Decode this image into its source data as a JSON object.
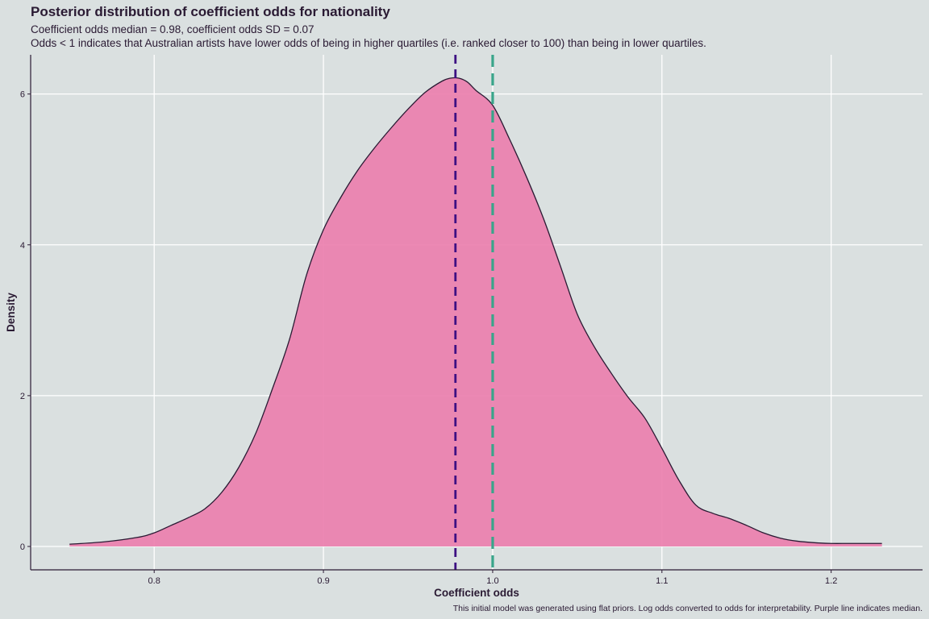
{
  "chart_data": {
    "type": "area",
    "title": "Posterior distribution of coefficient odds for nationality",
    "subtitle_line1": "Coefficient odds median = 0.98, coefficient odds SD = 0.07",
    "subtitle_line2": "Odds < 1 indicates that Australian artists have lower odds of being in higher quartiles (i.e. ranked closer to 100) than being in lower quartiles.",
    "caption": "This initial model was generated using flat priors. Log odds converted to odds for interpretability. Purple line indicates median.",
    "xlabel": "Coefficient odds",
    "ylabel": "Density",
    "xlim": [
      0.727,
      1.254
    ],
    "ylim": [
      -0.31,
      6.52
    ],
    "x_ticks": [
      0.8,
      0.9,
      1.0,
      1.1,
      1.2
    ],
    "x_tick_labels": [
      "0.8",
      "0.9",
      "1.0",
      "1.1",
      "1.2"
    ],
    "y_ticks": [
      0,
      2,
      4,
      6
    ],
    "y_tick_labels": [
      "0",
      "2",
      "4",
      "6"
    ],
    "grid": true,
    "fill_color": "#ec7fae",
    "outline_color": "#2a1a33",
    "median_line": {
      "x": 0.978,
      "color": "#3d1083",
      "style": "dashed"
    },
    "reference_line": {
      "x": 1.0,
      "color": "#39a58a",
      "style": "dashed"
    },
    "density": {
      "x": [
        0.75,
        0.77,
        0.79,
        0.8,
        0.81,
        0.82,
        0.83,
        0.84,
        0.85,
        0.86,
        0.87,
        0.88,
        0.89,
        0.9,
        0.91,
        0.92,
        0.93,
        0.94,
        0.95,
        0.96,
        0.97,
        0.975,
        0.98,
        0.985,
        0.99,
        1.0,
        1.01,
        1.02,
        1.03,
        1.04,
        1.05,
        1.06,
        1.07,
        1.08,
        1.09,
        1.1,
        1.11,
        1.12,
        1.13,
        1.14,
        1.15,
        1.16,
        1.17,
        1.18,
        1.19,
        1.2,
        1.21,
        1.22,
        1.23
      ],
      "y": [
        0.03,
        0.06,
        0.12,
        0.18,
        0.28,
        0.38,
        0.5,
        0.72,
        1.05,
        1.5,
        2.1,
        2.75,
        3.6,
        4.2,
        4.62,
        4.98,
        5.28,
        5.55,
        5.8,
        6.02,
        6.17,
        6.21,
        6.21,
        6.16,
        6.05,
        5.85,
        5.4,
        4.9,
        4.35,
        3.72,
        3.08,
        2.65,
        2.3,
        1.98,
        1.7,
        1.3,
        0.88,
        0.55,
        0.44,
        0.37,
        0.28,
        0.18,
        0.11,
        0.07,
        0.05,
        0.04,
        0.04,
        0.04,
        0.04
      ]
    }
  }
}
